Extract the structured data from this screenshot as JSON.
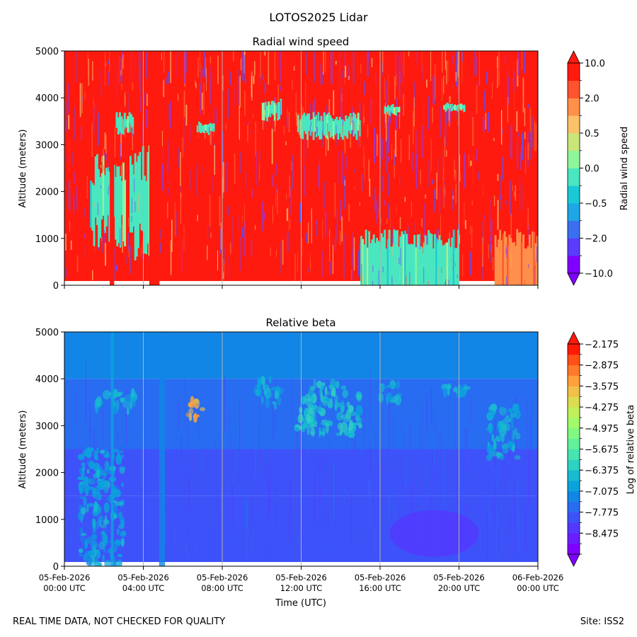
{
  "figure": {
    "suptitle": "LOTOS2025 Lidar",
    "footer_left": "REAL TIME DATA, NOT CHECKED FOR QUALITY",
    "footer_right": "Site: ISS2",
    "xlabel": "Time (UTC)"
  },
  "chart_data": [
    {
      "type": "heatmap",
      "title": "Radial wind speed",
      "ylabel": "Altitude (meters)",
      "xlabel": "",
      "ylim": [
        0,
        5000
      ],
      "yticks": [
        "0",
        "1000",
        "2000",
        "3000",
        "4000",
        "5000"
      ],
      "x_ticks": [
        {
          "hours": 0,
          "date": "05-Feb-2026",
          "time": "00:00 UTC"
        },
        {
          "hours": 4,
          "date": "05-Feb-2026",
          "time": "04:00 UTC"
        },
        {
          "hours": 8,
          "date": "05-Feb-2026",
          "time": "08:00 UTC"
        },
        {
          "hours": 12,
          "date": "05-Feb-2026",
          "time": "12:00 UTC"
        },
        {
          "hours": 16,
          "date": "05-Feb-2026",
          "time": "16:00 UTC"
        },
        {
          "hours": 20,
          "date": "05-Feb-2026",
          "time": "20:00 UTC"
        },
        {
          "hours": 24,
          "date": "06-Feb-2026",
          "time": "00:00 UTC"
        }
      ],
      "show_x_ticklabels": false,
      "colorbar": {
        "label": "Radial wind speed",
        "tick_labels": [
          "10.0",
          "2.0",
          "0.5",
          "0.0",
          "−0.5",
          "−2.0",
          "−10.0"
        ],
        "bins": 12,
        "colors_bottom_to_top": [
          "#8000ff",
          "#5a3cfc",
          "#3a6ff0",
          "#1ea6e6",
          "#19c9d6",
          "#4ae6c0",
          "#8ff59b",
          "#c8e67a",
          "#fbc26a",
          "#ff8f4a",
          "#ff5330",
          "#ff1a10"
        ]
      },
      "palette": {
        "dominant": "#ff1a10",
        "speckle": [
          "#ff5a2a",
          "#8c3cf0",
          "#fbb060",
          "#5a50ff"
        ],
        "cloud": "#70f0b8"
      },
      "features": [
        {
          "kind": "aerosol",
          "h0": 1.3,
          "h1": 3.1,
          "z0": 800,
          "z1": 2800,
          "value": 0.0
        },
        {
          "kind": "aerosol",
          "h0": 3.3,
          "h1": 4.5,
          "z0": 500,
          "z1": 3000,
          "value": 0.0
        },
        {
          "kind": "cloud",
          "h0": 2.6,
          "h1": 3.5,
          "z0": 3200,
          "z1": 3700,
          "value": 0.0
        },
        {
          "kind": "cloud",
          "h0": 6.7,
          "h1": 7.6,
          "z0": 3200,
          "z1": 3500,
          "value": 0.0
        },
        {
          "kind": "cloud",
          "h0": 10.0,
          "h1": 11.0,
          "z0": 3500,
          "z1": 4000,
          "value": 0.0
        },
        {
          "kind": "cloud",
          "h0": 11.8,
          "h1": 15.0,
          "z0": 3100,
          "z1": 3700,
          "value": 0.0
        },
        {
          "kind": "cloud",
          "h0": 16.2,
          "h1": 17.0,
          "z0": 3600,
          "z1": 3900,
          "value": 0.0
        },
        {
          "kind": "cloud",
          "h0": 19.2,
          "h1": 20.3,
          "z0": 3700,
          "z1": 3900,
          "value": 0.0
        },
        {
          "kind": "boundary-layer",
          "h0": 15.0,
          "h1": 20.0,
          "z0": 0,
          "z1": 1200,
          "value": 0.0
        },
        {
          "kind": "column",
          "h0": 2.3,
          "h1": 2.5,
          "z0": 0,
          "z1": 5000,
          "value": 10.0
        },
        {
          "kind": "column",
          "h0": 4.3,
          "h1": 4.8,
          "z0": 0,
          "z1": 5000,
          "value": 10.0
        },
        {
          "kind": "boundary-layer",
          "h0": 21.8,
          "h1": 24.0,
          "z0": 0,
          "z1": 1200,
          "value": 2.0
        }
      ]
    },
    {
      "type": "heatmap",
      "title": "Relative beta",
      "ylabel": "Altitude (meters)",
      "xlabel": "Time (UTC)",
      "ylim": [
        0,
        5000
      ],
      "yticks": [
        "0",
        "1000",
        "2000",
        "3000",
        "4000",
        "5000"
      ],
      "show_x_ticklabels": true,
      "colorbar": {
        "label": "Log of relative beta",
        "tick_labels": [
          "−2.175",
          "−2.875",
          "−3.575",
          "−4.275",
          "−4.975",
          "−5.675",
          "−6.375",
          "−7.075",
          "−7.775",
          "−8.475"
        ],
        "vmin": -9.175,
        "vmax": -2.175,
        "bins": 20,
        "colors_bottom_to_top": [
          "#8000ff",
          "#6a1eff",
          "#5438fe",
          "#3e52f9",
          "#286cf1",
          "#1286e6",
          "#0ba3dc",
          "#18bcd0",
          "#2dd2c2",
          "#46e4b0",
          "#62f09a",
          "#80f882",
          "#a0fa6a",
          "#c0f05a",
          "#dcdc52",
          "#f0c048",
          "#ffa03a",
          "#ff7a2a",
          "#ff5018",
          "#ff1a08"
        ]
      },
      "background_by_altitude": [
        {
          "z0": 4000,
          "z1": 5000,
          "value": -7.3
        },
        {
          "z0": 2500,
          "z1": 4000,
          "value": -7.5
        },
        {
          "z0": 1500,
          "z1": 2500,
          "value": -7.8
        },
        {
          "z0": 0,
          "z1": 1500,
          "value": -8.1
        }
      ],
      "features": [
        {
          "kind": "cloud",
          "h0": 6.0,
          "h1": 7.0,
          "z0": 3100,
          "z1": 3600,
          "value": -3.6
        },
        {
          "kind": "cloud",
          "h0": 1.6,
          "h1": 3.6,
          "z0": 3300,
          "z1": 3700,
          "value": -6.8
        },
        {
          "kind": "cloud",
          "h0": 9.7,
          "h1": 11.0,
          "z0": 3400,
          "z1": 4000,
          "value": -6.8
        },
        {
          "kind": "cloud",
          "h0": 11.8,
          "h1": 15.0,
          "z0": 2800,
          "z1": 3900,
          "value": -6.6
        },
        {
          "kind": "cloud",
          "h0": 16.0,
          "h1": 17.0,
          "z0": 3500,
          "z1": 3900,
          "value": -6.8
        },
        {
          "kind": "cloud",
          "h0": 19.2,
          "h1": 20.5,
          "z0": 3650,
          "z1": 3950,
          "value": -6.8
        },
        {
          "kind": "cloud",
          "h0": 21.5,
          "h1": 23.0,
          "z0": 2300,
          "z1": 3400,
          "value": -6.8
        },
        {
          "kind": "aerosol",
          "h0": 0.8,
          "h1": 3.0,
          "z0": 0,
          "z1": 2500,
          "value": -7.0
        },
        {
          "kind": "column",
          "h0": 2.35,
          "h1": 2.5,
          "z0": 0,
          "z1": 5000,
          "value": -7.0
        },
        {
          "kind": "column",
          "h0": 4.8,
          "h1": 5.1,
          "z0": 0,
          "z1": 5000,
          "value": -7.1
        },
        {
          "kind": "boundary-layer",
          "h0": 16.5,
          "h1": 21.0,
          "z0": 200,
          "z1": 1200,
          "value": -8.4
        }
      ]
    }
  ]
}
